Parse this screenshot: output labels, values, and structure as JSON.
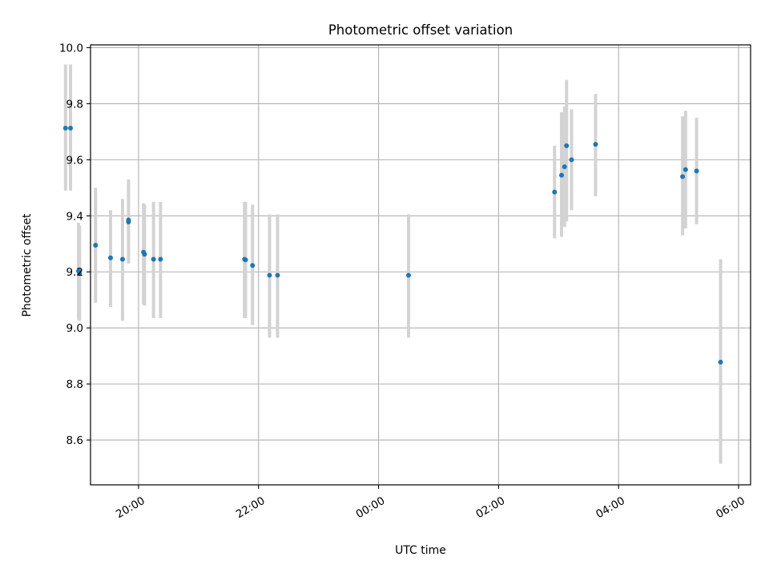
{
  "chart_data": {
    "type": "scatter",
    "title": "Photometric offset variation",
    "xlabel": "UTC time",
    "ylabel": "Photometric offset",
    "xlim": [
      "19:12",
      "30:12"
    ],
    "ylim": [
      8.44,
      10.01
    ],
    "x_ticks": [
      {
        "label": "20:00",
        "t": "20:00"
      },
      {
        "label": "22:00",
        "t": "22:00"
      },
      {
        "label": "00:00",
        "t": "24:00"
      },
      {
        "label": "02:00",
        "t": "26:00"
      },
      {
        "label": "04:00",
        "t": "28:00"
      },
      {
        "label": "06:00",
        "t": "30:00"
      }
    ],
    "y_ticks": [
      "8.6",
      "8.8",
      "9.0",
      "9.2",
      "9.4",
      "9.6",
      "9.8",
      "10.0"
    ],
    "grid": true,
    "error_bar_color": "#d3d3d3",
    "marker_color": "#1f77b4",
    "points": [
      {
        "t": "18:47",
        "y": 9.713,
        "lo": 9.49,
        "hi": 9.94
      },
      {
        "t": "18:52",
        "y": 9.713,
        "lo": 9.49,
        "hi": 9.94
      },
      {
        "t": "19:00",
        "y": 9.203,
        "lo": 9.03,
        "hi": 9.375
      },
      {
        "t": "19:01",
        "y": 9.195,
        "lo": 9.025,
        "hi": 9.365
      },
      {
        "t": "19:17",
        "y": 9.295,
        "lo": 9.09,
        "hi": 9.5
      },
      {
        "t": "19:32",
        "y": 9.25,
        "lo": 9.075,
        "hi": 9.42
      },
      {
        "t": "19:44",
        "y": 9.245,
        "lo": 9.025,
        "hi": 9.46
      },
      {
        "t": "19:50",
        "y": 9.385,
        "lo": 9.24,
        "hi": 9.53
      },
      {
        "t": "19:50",
        "y": 9.378,
        "lo": 9.23,
        "hi": 9.52
      },
      {
        "t": "20:05",
        "y": 9.27,
        "lo": 9.085,
        "hi": 9.445
      },
      {
        "t": "20:06",
        "y": 9.263,
        "lo": 9.08,
        "hi": 9.44
      },
      {
        "t": "20:15",
        "y": 9.245,
        "lo": 9.035,
        "hi": 9.45
      },
      {
        "t": "20:22",
        "y": 9.245,
        "lo": 9.035,
        "hi": 9.45
      },
      {
        "t": "21:46",
        "y": 9.245,
        "lo": 9.035,
        "hi": 9.45
      },
      {
        "t": "21:47",
        "y": 9.243,
        "lo": 9.035,
        "hi": 9.45
      },
      {
        "t": "21:54",
        "y": 9.223,
        "lo": 9.01,
        "hi": 9.44
      },
      {
        "t": "22:11",
        "y": 9.188,
        "lo": 8.965,
        "hi": 9.405
      },
      {
        "t": "22:19",
        "y": 9.188,
        "lo": 8.965,
        "hi": 9.405
      },
      {
        "t": "24:30",
        "y": 9.188,
        "lo": 8.965,
        "hi": 9.405
      },
      {
        "t": "26:56",
        "y": 9.485,
        "lo": 9.32,
        "hi": 9.65
      },
      {
        "t": "27:03",
        "y": 9.545,
        "lo": 9.325,
        "hi": 9.77
      },
      {
        "t": "27:06",
        "y": 9.575,
        "lo": 9.36,
        "hi": 9.79
      },
      {
        "t": "27:08",
        "y": 9.65,
        "lo": 9.38,
        "hi": 9.885
      },
      {
        "t": "27:13",
        "y": 9.6,
        "lo": 9.42,
        "hi": 9.78
      },
      {
        "t": "27:37",
        "y": 9.655,
        "lo": 9.47,
        "hi": 9.835
      },
      {
        "t": "29:04",
        "y": 9.54,
        "lo": 9.33,
        "hi": 9.755
      },
      {
        "t": "29:07",
        "y": 9.565,
        "lo": 9.355,
        "hi": 9.775
      },
      {
        "t": "29:18",
        "y": 9.56,
        "lo": 9.37,
        "hi": 9.75
      },
      {
        "t": "29:42",
        "y": 8.878,
        "lo": 8.515,
        "hi": 9.245
      }
    ]
  }
}
